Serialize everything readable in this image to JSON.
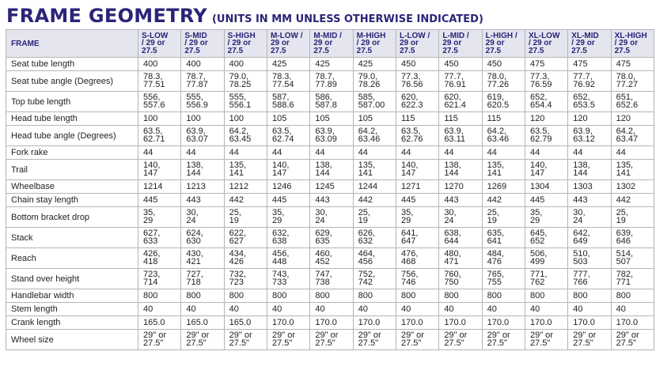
{
  "title": {
    "main": "FRAME GEOMETRY",
    "sub": "(UNITS IN MM UNLESS OTHERWISE INDICATED)"
  },
  "header": {
    "label": "FRAME",
    "columns": [
      [
        "S-LOW",
        "/ 29 or",
        "27.5"
      ],
      [
        "S-MID",
        "/ 29 or",
        "27.5"
      ],
      [
        "S-HIGH",
        "/ 29 or",
        "27.5"
      ],
      [
        "M-LOW /",
        "29 or",
        "27.5"
      ],
      [
        "M-MID /",
        "29 or",
        "27.5"
      ],
      [
        "M-HIGH",
        "/ 29 or",
        "27.5"
      ],
      [
        "L-LOW /",
        "29 or",
        "27.5"
      ],
      [
        "L-MID /",
        "29 or",
        "27.5"
      ],
      [
        "L-HIGH /",
        "29 or",
        "27.5"
      ],
      [
        "XL-LOW",
        "/ 29 or",
        "27.5"
      ],
      [
        "XL-MID",
        "/ 29 or",
        "27.5"
      ],
      [
        "XL-HIGH",
        "/ 29 or",
        "27.5"
      ]
    ]
  },
  "rows": [
    {
      "label": "Seat tube length",
      "cells": [
        "400",
        "400",
        "400",
        "425",
        "425",
        "425",
        "450",
        "450",
        "450",
        "475",
        "475",
        "475"
      ]
    },
    {
      "label": "Seat tube angle (Degrees)",
      "cells": [
        "78.3,\n77.51",
        "78.7,\n77.87",
        "79.0,\n78.25",
        "78.3,\n77.54",
        "78.7,\n77.89",
        "79.0,\n78.26",
        "77.3,\n76.56",
        "77.7,\n76.91",
        "78.0,\n77.26",
        "77.3,\n76.59",
        "77.7,\n76.92",
        "78.0,\n77.27"
      ]
    },
    {
      "label": "Top tube length",
      "cells": [
        "556,\n557.6",
        "555,\n556.9",
        "555,\n556.1",
        "587,\n588.6",
        "586,\n587.8",
        "585,\n587.00",
        "620,\n622.3",
        "620,\n621.4",
        "619,\n620.5",
        "652,\n654.4",
        "652,\n653.5",
        "651,\n652.6"
      ]
    },
    {
      "label": "Head tube length",
      "cells": [
        "100",
        "100",
        "100",
        "105",
        "105",
        "105",
        "115",
        "115",
        "115",
        "120",
        "120",
        "120"
      ]
    },
    {
      "label": "Head tube angle (Degrees)",
      "cells": [
        "63.5,\n62.71",
        "63.9,\n63.07",
        "64.2,\n63.45",
        "63.5,\n62.74",
        "63.9,\n63.09",
        "64.2,\n63.46",
        "63.5,\n62.76",
        "63.9,\n63.11",
        "64.2,\n63.46",
        "63.5,\n62.79",
        "63.9,\n63.12",
        "64.2,\n63.47"
      ]
    },
    {
      "label": "Fork rake",
      "cells": [
        "44",
        "44",
        "44",
        "44",
        "44",
        "44",
        "44",
        "44",
        "44",
        "44",
        "44",
        "44"
      ]
    },
    {
      "label": "Trail",
      "cells": [
        "140,\n147",
        "138,\n144",
        "135,\n141",
        "140,\n147",
        "138,\n144",
        "135,\n141",
        "140,\n147",
        "138,\n144",
        "135,\n141",
        "140,\n147",
        "138,\n144",
        "135,\n141"
      ]
    },
    {
      "label": "Wheelbase",
      "cells": [
        "1214",
        "1213",
        "1212",
        "1246",
        "1245",
        "1244",
        "1271",
        "1270",
        "1269",
        "1304",
        "1303",
        "1302"
      ]
    },
    {
      "label": "Chain stay length",
      "cells": [
        "445",
        "443",
        "442",
        "445",
        "443",
        "442",
        "445",
        "443",
        "442",
        "445",
        "443",
        "442"
      ]
    },
    {
      "label": "Bottom bracket drop",
      "cells": [
        "35,\n29",
        "30,\n24",
        "25,\n19",
        "35,\n29",
        "30,\n24",
        "25,\n19",
        "35,\n29",
        "30,\n24",
        "25,\n19",
        "35,\n29",
        "30,\n24",
        "25,\n19"
      ]
    },
    {
      "label": "Stack",
      "cells": [
        "627,\n633",
        "624,\n630",
        "622,\n627",
        "632,\n638",
        "629,\n635",
        "626,\n632",
        "641,\n647",
        "638,\n644",
        "635,\n641",
        "645,\n652",
        "642,\n649",
        "639,\n646"
      ]
    },
    {
      "label": "Reach",
      "cells": [
        "426,\n418",
        "430,\n421",
        "434,\n426",
        "456,\n448",
        "460,\n452",
        "464,\n456",
        "476,\n468",
        "480,\n471",
        "484,\n476",
        "506,\n499",
        "510,\n503",
        "514,\n507"
      ]
    },
    {
      "label": "Stand over height",
      "cells": [
        "723,\n714",
        "727,\n718",
        "732,\n723",
        "743,\n733",
        "747,\n738",
        "752,\n742",
        "756,\n746",
        "760,\n750",
        "765,\n755",
        "771,\n762",
        "777,\n766",
        "782,\n771"
      ]
    },
    {
      "label": "Handlebar width",
      "cells": [
        "800",
        "800",
        "800",
        "800",
        "800",
        "800",
        "800",
        "800",
        "800",
        "800",
        "800",
        "800"
      ]
    },
    {
      "label": "Stem length",
      "cells": [
        "40",
        "40",
        "40",
        "40",
        "40",
        "40",
        "40",
        "40",
        "40",
        "40",
        "40",
        "40"
      ]
    },
    {
      "label": "Crank length",
      "cells": [
        "165.0",
        "165.0",
        "165.0",
        "170.0",
        "170.0",
        "170.0",
        "170.0",
        "170.0",
        "170.0",
        "170.0",
        "170.0",
        "170.0"
      ]
    },
    {
      "label": "Wheel size",
      "cells": [
        "29\" or\n27.5\"",
        "29\" or\n27.5\"",
        "29\" or\n27.5\"",
        "29\" or\n27.5\"",
        "29\" or\n27.5\"",
        "29\" or\n27.5\"",
        "29\" or\n27.5\"",
        "29\" or\n27.5\"",
        "29\" or\n27.5\"",
        "29\" or\n27.5\"",
        "29\" or\n27.5\"",
        "29\" or\n27.5\""
      ]
    }
  ]
}
